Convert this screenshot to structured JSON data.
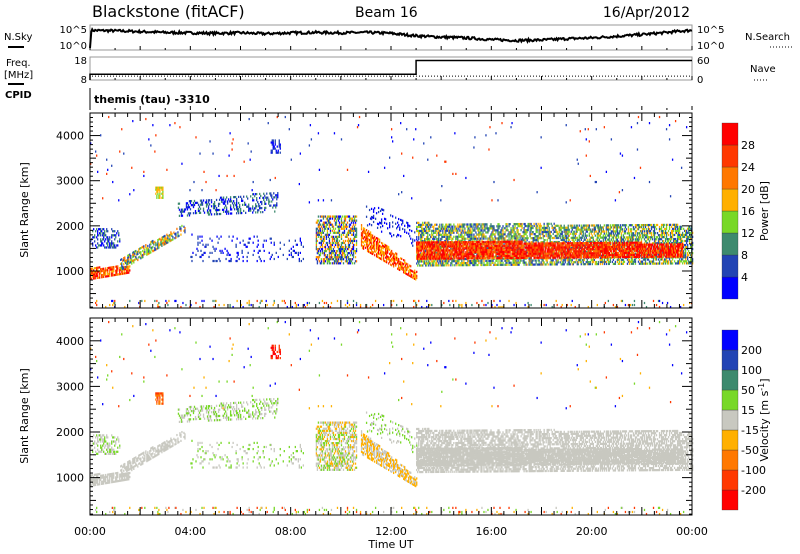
{
  "chart_data": [
    {
      "type": "line",
      "name": "noise",
      "title": "Blackstone (fitACF)",
      "subtitle": "Beam 16",
      "date": "16/Apr/2012",
      "left_label": "N.Sky",
      "right_label": "N.Search",
      "left_ticks": [
        "10^5",
        "10^0"
      ],
      "right_ticks": [
        "10^5",
        "10^0"
      ],
      "x_hours": [
        0,
        0.05,
        1,
        2,
        3,
        4,
        5,
        6,
        7,
        8,
        9,
        10,
        11,
        12,
        13,
        14,
        15,
        16,
        17,
        18,
        19,
        20,
        21,
        22,
        23,
        23.5,
        24
      ],
      "nsky_log": [
        0,
        4.2,
        4.1,
        3.9,
        3.7,
        3.6,
        3.5,
        3.6,
        3.4,
        3.6,
        3.7,
        3.6,
        3.7,
        3.5,
        2.9,
        2.6,
        2.4,
        2.0,
        1.8,
        1.9,
        2.2,
        2.4,
        2.8,
        3.2,
        3.7,
        4.0,
        4.2
      ]
    },
    {
      "type": "line",
      "name": "frequency",
      "left_label": "Freq.",
      "left_unit": "[MHz]",
      "right_label": "Nave",
      "left_ticks": [
        "18",
        "8"
      ],
      "right_ticks": [
        "60",
        "0"
      ],
      "freq_steps": [
        {
          "t0": 0,
          "t1": 13,
          "value": 10.5
        },
        {
          "t0": 13,
          "t1": 24,
          "value": 16.5
        }
      ],
      "nave": 10,
      "freq_range": [
        8,
        18
      ],
      "cpid_label": "CPID",
      "cpid_text": "themis (tau) -3310"
    },
    {
      "type": "heatmap",
      "name": "power",
      "ylabel": "Slant Range [km]",
      "yticks": [
        "1000",
        "2000",
        "3000",
        "4000"
      ],
      "ylim": [
        180,
        4500
      ],
      "xlim": [
        0,
        24
      ],
      "colorbar_label": "Power [dB]",
      "colorbar_ticks": [
        "4",
        "8",
        "12",
        "16",
        "20",
        "24",
        "28"
      ],
      "colors": [
        "#0000ff",
        "#2244b4",
        "#3d8a6e",
        "#78d828",
        "#ffb000",
        "#ff7800",
        "#ff3800",
        "#ff0000"
      ]
    },
    {
      "type": "heatmap",
      "name": "velocity",
      "ylabel": "Slant Range [km]",
      "yticks": [
        "1000",
        "2000",
        "3000",
        "4000"
      ],
      "ylim": [
        180,
        4500
      ],
      "xlim": [
        0,
        24
      ],
      "xticks": [
        "00:00",
        "04:00",
        "08:00",
        "12:00",
        "16:00",
        "20:00",
        "00:00"
      ],
      "xlabel": "Time UT",
      "colorbar_label": "Velocity [m s",
      "colorbar_sup": "-1",
      "colorbar_close": "]",
      "colorbar_ticks": [
        "200",
        "100",
        "50",
        "15",
        "-15",
        "-50",
        "-100",
        "-200"
      ],
      "colors": [
        "#0000ff",
        "#2244b4",
        "#3d8a6e",
        "#78d828",
        "#c8c8c0",
        "#ffb000",
        "#ff7800",
        "#ff3800",
        "#ff0000"
      ]
    }
  ],
  "echo_bands": [
    {
      "t0": 0,
      "t1": 1.6,
      "r0a": 800,
      "r0b": 950,
      "r1a": 1050,
      "r1b": 1100,
      "p": [
        5,
        6,
        7,
        4
      ],
      "v": [
        4
      ],
      "d": 0.8
    },
    {
      "t0": 0,
      "t1": 1.2,
      "r0a": 1500,
      "r0b": 1500,
      "r1a": 1950,
      "r1b": 1900,
      "p": [
        1,
        0,
        2
      ],
      "v": [
        4,
        4,
        3
      ],
      "d": 0.35
    },
    {
      "t0": 1.2,
      "t1": 3.8,
      "r0a": 1000,
      "r0b": 1850,
      "r1a": 1250,
      "r1b": 2050,
      "p": [
        3,
        4,
        5,
        2,
        1
      ],
      "v": [
        4
      ],
      "d": 0.6
    },
    {
      "t0": 3.5,
      "t1": 7.5,
      "r0a": 2200,
      "r0b": 2300,
      "r1a": 2500,
      "r1b": 2750,
      "p": [
        1,
        0,
        2
      ],
      "v": [
        4,
        3
      ],
      "d": 0.35
    },
    {
      "t0": 4,
      "t1": 8.5,
      "r0a": 1200,
      "r0b": 1200,
      "r1a": 1800,
      "r1b": 1700,
      "p": [
        0,
        1
      ],
      "v": [
        4,
        3
      ],
      "d": 0.12
    },
    {
      "t0": 9,
      "t1": 10.6,
      "r0a": 1150,
      "r0b": 1150,
      "r1a": 2200,
      "r1b": 2200,
      "p": [
        1,
        2,
        3,
        4,
        5,
        0
      ],
      "v": [
        4,
        3,
        4,
        5
      ],
      "d": 0.55
    },
    {
      "t0": 10.8,
      "t1": 13,
      "r0a": 1500,
      "r0b": 780,
      "r1a": 2000,
      "r1b": 1000,
      "p": [
        4,
        5,
        6,
        7
      ],
      "v": [
        4,
        5
      ],
      "d": 0.7
    },
    {
      "t0": 11,
      "t1": 13,
      "r0a": 2000,
      "r0b": 1500,
      "r1a": 2500,
      "r1b": 2000,
      "p": [
        0,
        1
      ],
      "v": [
        4,
        3
      ],
      "d": 0.15
    },
    {
      "t0": 13,
      "t1": 24,
      "r0a": 1100,
      "r0b": 1150,
      "r1a": 2050,
      "r1b": 2000,
      "p": [
        1,
        2,
        3,
        4
      ],
      "v": [
        4
      ],
      "d": 0.6
    },
    {
      "t0": 13,
      "t1": 23.6,
      "r0a": 1250,
      "r0b": 1300,
      "r1a": 1650,
      "r1b": 1600,
      "p": [
        5,
        6,
        7,
        7
      ],
      "v": [
        4
      ],
      "d": 0.85
    },
    {
      "t0": 0,
      "t1": 24,
      "r0a": 180,
      "r0b": 180,
      "r1a": 320,
      "r1b": 320,
      "p": [
        0,
        2,
        4,
        6
      ],
      "v": [
        3,
        4,
        5,
        7
      ],
      "d": 0.08
    },
    {
      "t0": 0,
      "t1": 24,
      "r0a": 2500,
      "r0b": 2500,
      "r1a": 4400,
      "r1b": 4400,
      "p": [
        0,
        1,
        6
      ],
      "v": [
        0,
        7,
        3,
        5
      ],
      "d": 0.006
    },
    {
      "t0": 7.2,
      "t1": 7.6,
      "r0a": 3600,
      "r0b": 3600,
      "r1a": 3900,
      "r1b": 3900,
      "p": [
        1,
        0
      ],
      "v": [
        8,
        7
      ],
      "d": 0.5
    },
    {
      "t0": 2.6,
      "t1": 2.9,
      "r0a": 2600,
      "r0b": 2600,
      "r1a": 2850,
      "r1b": 2850,
      "p": [
        3,
        4
      ],
      "v": [
        6,
        7
      ],
      "d": 0.6
    }
  ]
}
